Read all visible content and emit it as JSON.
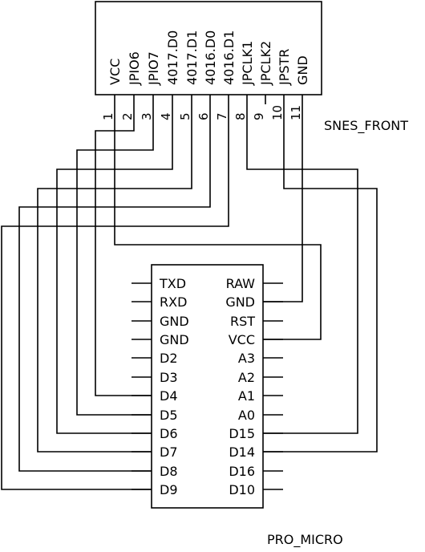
{
  "snes_front": {
    "name": "SNES_FRONT",
    "pins": [
      {
        "num": "1",
        "signal": "VCC"
      },
      {
        "num": "2",
        "signal": "JPIO6"
      },
      {
        "num": "3",
        "signal": "JPIO7"
      },
      {
        "num": "4",
        "signal": "4017.D0"
      },
      {
        "num": "5",
        "signal": "4017.D1"
      },
      {
        "num": "6",
        "signal": "4016.D0"
      },
      {
        "num": "7",
        "signal": "4016.D1"
      },
      {
        "num": "8",
        "signal": "JPCLK1"
      },
      {
        "num": "9",
        "signal": "JPCLK2"
      },
      {
        "num": "10",
        "signal": "JPSTR"
      },
      {
        "num": "11",
        "signal": "GND"
      }
    ]
  },
  "pro_micro": {
    "name": "PRO_MICRO",
    "left_pins": [
      "TXD",
      "RXD",
      "GND",
      "GND",
      "D2",
      "D3",
      "D4",
      "D5",
      "D6",
      "D7",
      "D8",
      "D9"
    ],
    "right_pins": [
      "RAW",
      "GND",
      "RST",
      "VCC",
      "A3",
      "A2",
      "A1",
      "A0",
      "D15",
      "D14",
      "D16",
      "D10"
    ]
  }
}
